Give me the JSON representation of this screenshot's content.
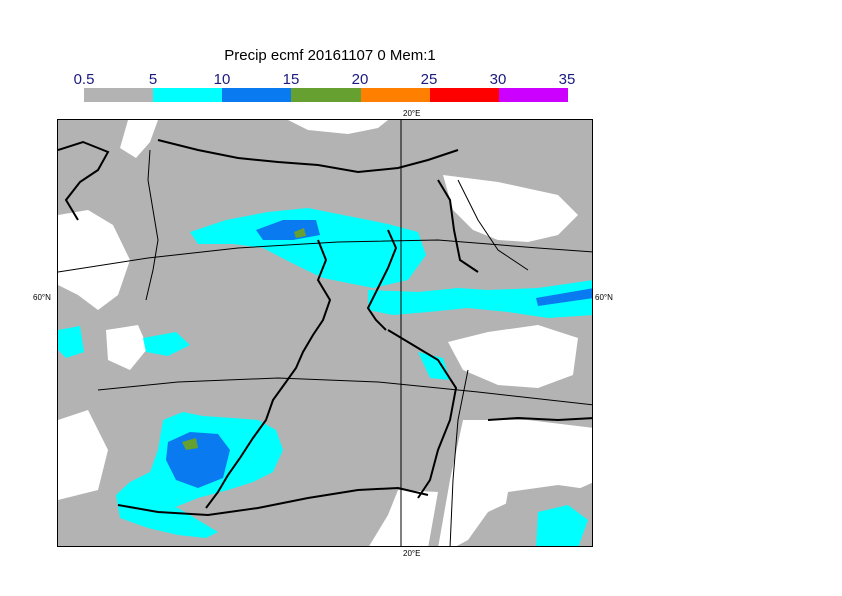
{
  "title": "Precip ecmf 20161107 0 Mem:1",
  "legend": {
    "labels": [
      "0.5",
      "5",
      "10",
      "15",
      "20",
      "25",
      "30",
      "35"
    ],
    "colors": [
      "#b3b3b3",
      "#00ffff",
      "#0a7af0",
      "#66a030",
      "#ff8000",
      "#ff0000",
      "#cc00ff"
    ]
  },
  "map": {
    "lon_label_top": "20°E",
    "lon_label_bottom": "20°E",
    "lat_label_left": "60°N",
    "lat_label_right": "60°N",
    "land_color": "#b3b3b3",
    "dry_color": "#ffffff"
  }
}
